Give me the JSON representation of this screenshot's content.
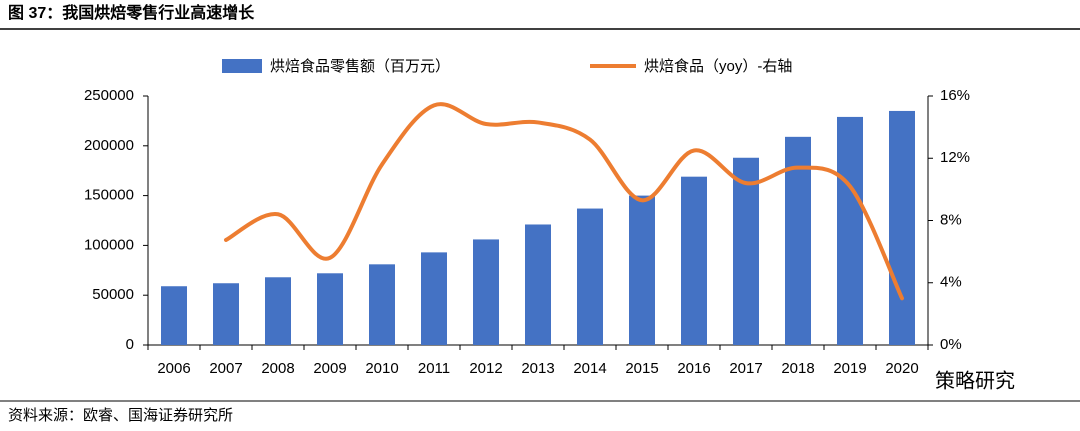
{
  "chart_data": {
    "type": "bar-line",
    "title": "图 37：我国烘焙零售行业高速增长",
    "source": "资料来源：欧睿、国海证券研究所",
    "watermark": "策略研究",
    "categories": [
      "2006",
      "2007",
      "2008",
      "2009",
      "2010",
      "2011",
      "2012",
      "2013",
      "2014",
      "2015",
      "2016",
      "2017",
      "2018",
      "2019",
      "2020"
    ],
    "series": [
      {
        "name": "烘焙食品零售额（百万元）",
        "type": "bar",
        "color": "#4472c4",
        "values": [
          59000,
          62000,
          68000,
          72000,
          81000,
          93000,
          106000,
          121000,
          137000,
          150000,
          169000,
          188000,
          209000,
          229000,
          235000
        ]
      },
      {
        "name": "烘焙食品（yoy）-右轴",
        "type": "line",
        "color": "#ed7d31",
        "axis": "y2",
        "values": [
          null,
          6.75,
          8.4,
          5.6,
          11.6,
          15.4,
          14.2,
          14.3,
          13.2,
          9.3,
          12.5,
          10.4,
          11.4,
          10.2,
          3.0
        ]
      }
    ],
    "ylim": [
      0,
      250000
    ],
    "yticks": [
      0,
      50000,
      100000,
      150000,
      200000,
      250000
    ],
    "y2lim": [
      0,
      16
    ],
    "y2ticks": [
      {
        "value": 0,
        "label": "0%"
      },
      {
        "value": 4,
        "label": "4%"
      },
      {
        "value": 8,
        "label": "8%"
      },
      {
        "value": 12,
        "label": "12%"
      },
      {
        "value": 16,
        "label": "16%"
      }
    ]
  }
}
